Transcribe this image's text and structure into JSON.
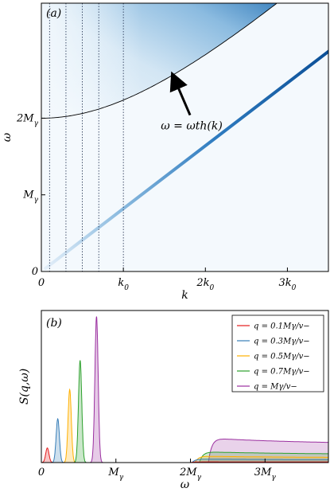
{
  "chart_data": [
    {
      "type": "heatmap",
      "panel_label": "(a)",
      "xlabel": "k",
      "ylabel": "ω",
      "x_ticks": [
        "0",
        "k0",
        "2k0",
        "3k0"
      ],
      "y_ticks": [
        "0",
        "Mγ",
        "2Mγ"
      ],
      "xlim": [
        0,
        3.5
      ],
      "ylim": [
        0,
        3.5
      ],
      "tick_units": {
        "x": 1.0,
        "y": 1.0
      },
      "vertical_marker_lines_k": [
        0.1,
        0.3,
        0.5,
        0.7,
        1.0
      ],
      "threshold_curve": {
        "label": "ω = ωth(k)",
        "formula": "sqrt(4 + k^2)",
        "gap_at_k0": 2.0
      },
      "dispersion_line": {
        "slope": 0.82,
        "intercept": 0.0
      },
      "annotation": {
        "text": "ω = ωth(k)",
        "arrow_points_to": [
          1.6,
          2.58
        ]
      },
      "colormap": "Blues"
    },
    {
      "type": "line",
      "panel_label": "(b)",
      "xlabel": "ω",
      "ylabel": "S(q,ω)",
      "x_ticks": [
        "0",
        "Mγ",
        "2Mγ",
        "3Mγ"
      ],
      "xlim": [
        0,
        3.85
      ],
      "ylim": [
        0,
        1.0
      ],
      "legend_position": "top-right",
      "series": [
        {
          "name": "q = 0.1Mγ/v−",
          "color": "#e41a1c",
          "peak_omega": 0.08,
          "peak_height": 0.1,
          "cont_height": 0.005
        },
        {
          "name": "q = 0.3Mγ/v−",
          "color": "#377eb8",
          "peak_omega": 0.22,
          "peak_height": 0.3,
          "cont_height": 0.025
        },
        {
          "name": "q = 0.5Mγ/v−",
          "color": "#ffb000",
          "peak_omega": 0.38,
          "peak_height": 0.5,
          "cont_height": 0.045
        },
        {
          "name": "q = 0.7Mγ/v−",
          "color": "#2ca02c",
          "peak_omega": 0.52,
          "peak_height": 0.7,
          "cont_height": 0.075
        },
        {
          "name": "q = Mγ/v−",
          "color": "#9b30a0",
          "peak_omega": 0.74,
          "peak_height": 1.0,
          "cont_height": 0.17
        }
      ],
      "continuum_thresholds": [
        2.0,
        2.02,
        2.06,
        2.12,
        2.24
      ]
    }
  ]
}
